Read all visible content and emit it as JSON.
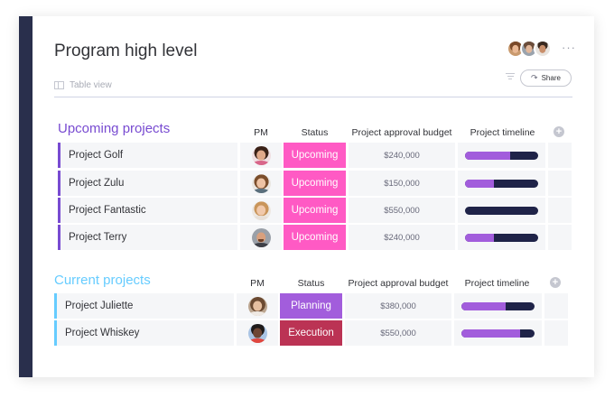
{
  "board": {
    "title": "Program high level",
    "view_label": "Table view",
    "more_label": "···",
    "share_label": "Share",
    "share_icon": "↷"
  },
  "groups": [
    {
      "title": "Upcoming projects",
      "color": "#784bd1",
      "columns": {
        "pm": "PM",
        "status": "Status",
        "budget": "Project approval budget",
        "timeline": "Project timeline",
        "add": "+"
      },
      "rows": [
        {
          "name": "Project Golf",
          "avatar": "woman-dark-hair",
          "status": "Upcoming",
          "status_color": "#ff5ac4",
          "budget": "$240,000",
          "timeline_progress": 0.62
        },
        {
          "name": "Project Zulu",
          "avatar": "woman-brown-hair",
          "status": "Upcoming",
          "status_color": "#ff5ac4",
          "budget": "$150,000",
          "timeline_progress": 0.4
        },
        {
          "name": "Project Fantastic",
          "avatar": "woman-blonde-hair",
          "status": "Upcoming",
          "status_color": "#ff5ac4",
          "budget": "$550,000",
          "timeline_progress": 0.0
        },
        {
          "name": "Project Terry",
          "avatar": "man-bald-beard",
          "status": "Upcoming",
          "status_color": "#ff5ac4",
          "budget": "$240,000",
          "timeline_progress": 0.4
        }
      ]
    },
    {
      "title": "Current projects",
      "color": "#66ccff",
      "columns": {
        "pm": "PM",
        "status": "Status",
        "budget": "Project approval budget",
        "timeline": "Project timeline",
        "add": "+"
      },
      "rows": [
        {
          "name": "Project Juliette",
          "avatar": "woman-curly-hair",
          "status": "Planning",
          "status_color": "#a25ddc",
          "budget": "$380,000",
          "timeline_progress": 0.6
        },
        {
          "name": "Project Whiskey",
          "avatar": "man-dark-skin",
          "status": "Execution",
          "status_color": "#bb3354",
          "budget": "$550,000",
          "timeline_progress": 0.8
        }
      ]
    }
  ],
  "colors": {
    "sidebar": "#292f4c",
    "cell_bg": "#f5f6f8",
    "timeline_track": "#1f2348",
    "timeline_fill": "#a25ddc"
  },
  "icons": {
    "view": "table-icon",
    "filter": "filter-icon",
    "share": "share-arrow-icon",
    "add_column": "plus-circle-icon"
  }
}
